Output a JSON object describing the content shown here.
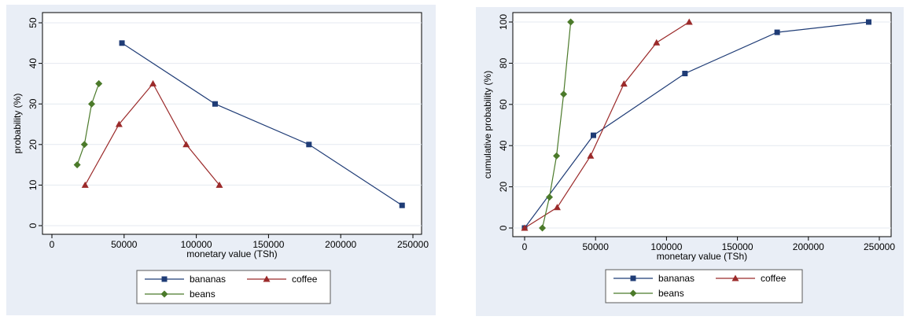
{
  "colors": {
    "panel_bg": "#e9eef6",
    "plot_bg": "#ffffff",
    "grid": "#e4e9f0",
    "bananas": "#1f3c76",
    "coffee": "#9b2a2a",
    "beans": "#4b7a2a"
  },
  "chart_data": [
    {
      "type": "line",
      "xlabel": "monetary value (TSh)",
      "ylabel": "probability (%)",
      "xlim": [
        0,
        250000
      ],
      "ylim": [
        0,
        50
      ],
      "xticks": [
        0,
        50000,
        100000,
        150000,
        200000,
        250000
      ],
      "xtick_labels": [
        "0",
        "50000",
        "100000",
        "150000",
        "200000",
        "250000"
      ],
      "yticks": [
        0,
        10,
        20,
        30,
        40,
        50
      ],
      "ytick_labels": [
        "0",
        "10",
        "20",
        "30",
        "40",
        "50"
      ],
      "grid": true,
      "legend_position": "bottom",
      "series": [
        {
          "name": "bananas",
          "marker": "square",
          "x": [
            48500,
            113000,
            178000,
            242500
          ],
          "y": [
            45,
            30,
            20,
            5
          ]
        },
        {
          "name": "coffee",
          "marker": "triangle",
          "x": [
            23000,
            46500,
            70000,
            93000,
            116000
          ],
          "y": [
            10,
            25,
            35,
            20,
            10
          ]
        },
        {
          "name": "beans",
          "marker": "diamond",
          "x": [
            17500,
            22500,
            27500,
            32500
          ],
          "y": [
            15,
            20,
            30,
            35
          ]
        }
      ]
    },
    {
      "type": "line",
      "xlabel": "monetary value (TSh)",
      "ylabel": "cumulative probability (%)",
      "xlim": [
        0,
        250000
      ],
      "ylim": [
        0,
        100
      ],
      "xticks": [
        0,
        50000,
        100000,
        150000,
        200000,
        250000
      ],
      "xtick_labels": [
        "0",
        "50000",
        "100000",
        "150000",
        "200000",
        "250000"
      ],
      "yticks": [
        0,
        20,
        40,
        60,
        80,
        100
      ],
      "ytick_labels": [
        "0",
        "20",
        "40",
        "60",
        "80",
        "100"
      ],
      "grid": true,
      "legend_position": "bottom",
      "series": [
        {
          "name": "bananas",
          "marker": "square",
          "x": [
            0,
            48500,
            113000,
            178000,
            242500
          ],
          "y": [
            0,
            45,
            75,
            95,
            100
          ]
        },
        {
          "name": "coffee",
          "marker": "triangle",
          "x": [
            0,
            23000,
            46500,
            70000,
            93000,
            116000
          ],
          "y": [
            0,
            10,
            35,
            70,
            90,
            100
          ]
        },
        {
          "name": "beans",
          "marker": "diamond",
          "x": [
            12500,
            17500,
            22500,
            27500,
            32500
          ],
          "y": [
            0,
            15,
            35,
            65,
            100
          ]
        }
      ]
    }
  ]
}
